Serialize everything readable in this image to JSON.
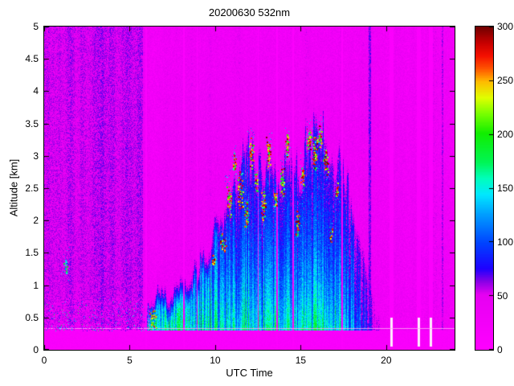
{
  "chart_data": {
    "type": "heatmap",
    "title": "20200630 532nm",
    "xlabel": "UTC Time",
    "ylabel": "Altitude [km]",
    "xlim": [
      0,
      24
    ],
    "ylim": [
      0,
      5
    ],
    "xticks": [
      0,
      5,
      10,
      15,
      20
    ],
    "yticks": [
      0,
      0.5,
      1,
      1.5,
      2,
      2.5,
      3,
      3.5,
      4,
      4.5,
      5
    ],
    "grid": false,
    "legend": "none",
    "colorbar": {
      "min": 0,
      "max": 300,
      "ticks": [
        0,
        50,
        100,
        150,
        200,
        250,
        300
      ],
      "position": "right"
    },
    "colormap": [
      {
        "v": 0.0,
        "c": "#ff00ff"
      },
      {
        "v": 0.17,
        "c": "#e600f2"
      },
      {
        "v": 0.21,
        "c": "#8a00e6"
      },
      {
        "v": 0.25,
        "c": "#1e00ff"
      },
      {
        "v": 0.33,
        "c": "#0044ff"
      },
      {
        "v": 0.42,
        "c": "#00a0ff"
      },
      {
        "v": 0.48,
        "c": "#00e8ff"
      },
      {
        "v": 0.53,
        "c": "#00ffbb"
      },
      {
        "v": 0.58,
        "c": "#00f555"
      },
      {
        "v": 0.67,
        "c": "#11ee00"
      },
      {
        "v": 0.73,
        "c": "#77ff00"
      },
      {
        "v": 0.78,
        "c": "#e0ff00"
      },
      {
        "v": 0.83,
        "c": "#ffbb00"
      },
      {
        "v": 0.87,
        "c": "#ff5500"
      },
      {
        "v": 0.91,
        "c": "#f51000"
      },
      {
        "v": 0.95,
        "c": "#c80000"
      },
      {
        "v": 1.0,
        "c": "#700000"
      }
    ],
    "field": {
      "background": [
        {
          "t": [
            0,
            5.78
          ],
          "value": 52,
          "noise": 14
        },
        {
          "t": [
            5.78,
            24.01
          ],
          "value": 30,
          "noise": 20
        }
      ],
      "column_noise": 11,
      "surface_layer": {
        "h_top": 0.3,
        "value": 6
      },
      "surface_line": {
        "h": 0.33,
        "color": "#ffa6f4"
      },
      "speckle": {
        "t": [
          0,
          6.2
        ],
        "h": [
          0.3,
          0.8
        ],
        "count": 1600
      },
      "plume": {
        "envelope": [
          [
            5.85,
            0.35
          ],
          [
            6.1,
            0.85
          ],
          [
            6.6,
            1.05
          ],
          [
            7.2,
            0.95
          ],
          [
            7.8,
            1.15
          ],
          [
            8.4,
            1.25
          ],
          [
            9.0,
            1.5
          ],
          [
            9.6,
            1.7
          ],
          [
            10.0,
            2.05
          ],
          [
            10.5,
            2.45
          ],
          [
            11.0,
            2.9
          ],
          [
            11.5,
            3.0
          ],
          [
            12.0,
            3.2
          ],
          [
            12.5,
            2.95
          ],
          [
            13.0,
            3.1
          ],
          [
            13.5,
            2.95
          ],
          [
            14.0,
            3.2
          ],
          [
            14.5,
            3.05
          ],
          [
            15.0,
            3.15
          ],
          [
            15.5,
            3.4
          ],
          [
            16.0,
            3.5
          ],
          [
            16.5,
            3.25
          ],
          [
            17.0,
            3.05
          ],
          [
            17.5,
            2.95
          ],
          [
            18.0,
            2.55
          ],
          [
            18.5,
            2.05
          ],
          [
            19.0,
            1.45
          ],
          [
            19.5,
            0.85
          ],
          [
            19.9,
            0.4
          ]
        ]
      },
      "stripes": [
        {
          "t": 5.95,
          "w": 0.1
        },
        {
          "t": 8.18,
          "w": 0.08
        },
        {
          "t": 8.95,
          "w": 0.06
        },
        {
          "t": 12.52,
          "w": 0.07
        },
        {
          "t": 13.62,
          "w": 0.05
        },
        {
          "t": 14.55,
          "w": 0.07
        },
        {
          "t": 17.42,
          "w": 0.1
        },
        {
          "t": 20.33,
          "w": 0.24,
          "gap": true
        },
        {
          "t": 21.9,
          "w": 0.26,
          "gap": true
        },
        {
          "t": 22.62,
          "w": 0.22,
          "gap": true
        }
      ],
      "dark_stripes": [
        {
          "t": 19.05,
          "w": 0.14,
          "value": 64
        },
        {
          "t": 23.3,
          "w": 0.12,
          "value": 56
        }
      ],
      "clouds": [
        {
          "t": 1.25,
          "h": 1.3,
          "rt": 0.15,
          "rh": 0.18,
          "n": 22,
          "vmin": 60,
          "vmax": 210
        },
        {
          "t": 6.35,
          "h": 0.5,
          "rt": 0.22,
          "rh": 0.16,
          "n": 60,
          "vmin": 110,
          "vmax": 270
        },
        {
          "t": 9.9,
          "h": 1.4,
          "rt": 0.15,
          "rh": 0.12,
          "n": 18
        },
        {
          "t": 10.45,
          "h": 1.65,
          "rt": 0.2,
          "rh": 0.15,
          "n": 35
        },
        {
          "t": 10.8,
          "h": 2.35,
          "rt": 0.15,
          "rh": 0.3,
          "n": 40
        },
        {
          "t": 11.1,
          "h": 2.9,
          "rt": 0.12,
          "rh": 0.22,
          "n": 32
        },
        {
          "t": 11.45,
          "h": 2.5,
          "rt": 0.18,
          "rh": 0.32,
          "n": 50
        },
        {
          "t": 11.8,
          "h": 2.1,
          "rt": 0.15,
          "rh": 0.25,
          "n": 38
        },
        {
          "t": 12.1,
          "h": 3.05,
          "rt": 0.14,
          "rh": 0.25,
          "n": 42
        },
        {
          "t": 12.4,
          "h": 2.6,
          "rt": 0.12,
          "rh": 0.2,
          "n": 30
        },
        {
          "t": 12.8,
          "h": 2.2,
          "rt": 0.15,
          "rh": 0.3,
          "n": 45
        },
        {
          "t": 13.1,
          "h": 3.0,
          "rt": 0.15,
          "rh": 0.3,
          "n": 48
        },
        {
          "t": 13.5,
          "h": 2.35,
          "rt": 0.12,
          "rh": 0.2,
          "n": 28
        },
        {
          "t": 13.9,
          "h": 2.6,
          "rt": 0.15,
          "rh": 0.25,
          "n": 38
        },
        {
          "t": 14.2,
          "h": 3.15,
          "rt": 0.12,
          "rh": 0.2,
          "n": 34
        },
        {
          "t": 14.8,
          "h": 1.95,
          "rt": 0.15,
          "rh": 0.25,
          "n": 38
        },
        {
          "t": 15.1,
          "h": 2.7,
          "rt": 0.12,
          "rh": 0.25,
          "n": 34
        },
        {
          "t": 15.45,
          "h": 3.25,
          "rt": 0.15,
          "rh": 0.2,
          "n": 42
        },
        {
          "t": 15.8,
          "h": 3.05,
          "rt": 0.2,
          "rh": 0.32,
          "n": 60
        },
        {
          "t": 16.1,
          "h": 3.3,
          "rt": 0.15,
          "rh": 0.2,
          "n": 40
        },
        {
          "t": 16.45,
          "h": 2.9,
          "rt": 0.15,
          "rh": 0.25,
          "n": 38
        },
        {
          "t": 16.75,
          "h": 1.8,
          "rt": 0.12,
          "rh": 0.15,
          "n": 22
        },
        {
          "t": 17.1,
          "h": 2.45,
          "rt": 0.1,
          "rh": 0.15,
          "n": 18
        }
      ]
    }
  }
}
